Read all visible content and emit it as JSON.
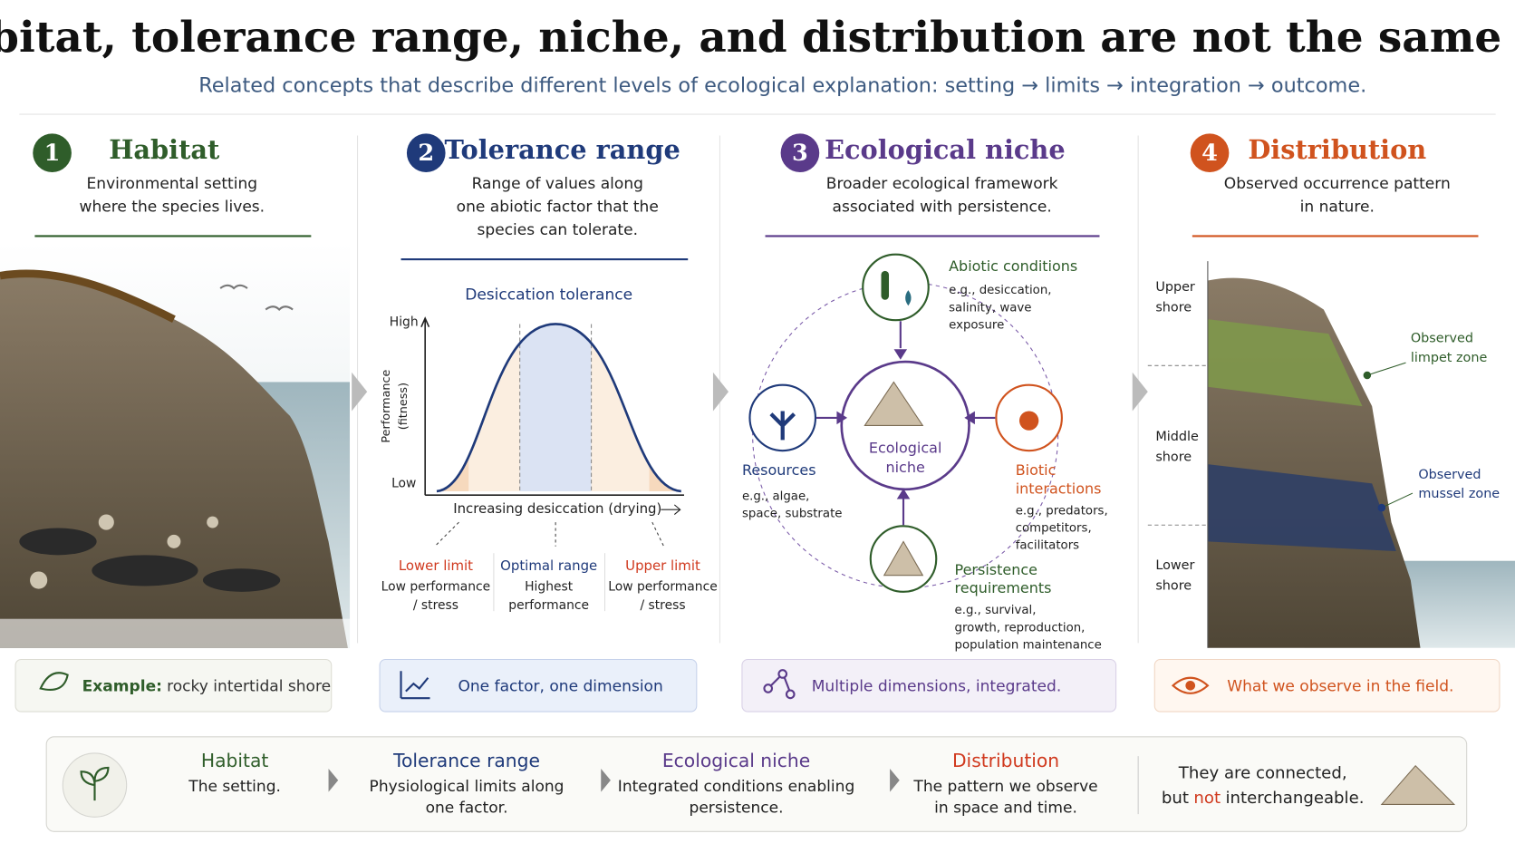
{
  "header": {
    "title": "Habitat, tolerance range, niche, and distribution are not the same thing",
    "subtitle": "Related concepts that describe different levels of ecological explanation: setting → limits → integration → outcome."
  },
  "panels": [
    {
      "number": "1",
      "title": "Habitat",
      "description": [
        "Environmental setting",
        "where the species lives."
      ],
      "footer": {
        "lead": "Example:",
        "text": "rocky intertidal shore"
      }
    },
    {
      "number": "2",
      "title": "Tolerance range",
      "description": [
        "Range of values along",
        "one abiotic factor that the",
        "species can tolerate."
      ],
      "footer": {
        "text": "One factor, one dimension"
      }
    },
    {
      "number": "3",
      "title": "Ecological niche",
      "description": [
        "Broader ecological framework",
        "associated with persistence."
      ],
      "footer": {
        "text": "Multiple dimensions, integrated."
      }
    },
    {
      "number": "4",
      "title": "Distribution",
      "description": [
        "Observed occurrence pattern",
        "in nature."
      ],
      "footer": {
        "text": "What we observe in the field."
      }
    }
  ],
  "tolerance_chart": {
    "title": "Desiccation tolerance",
    "y_axis_label": [
      "Performance",
      "(fitness)"
    ],
    "y_high": "High",
    "y_low": "Low",
    "x_axis_label": "Increasing desiccation (drying)",
    "zones": [
      {
        "label": "Lower limit",
        "description": [
          "Low performance",
          "/ stress"
        ]
      },
      {
        "label": "Optimal range",
        "description": [
          "Highest",
          "performance"
        ]
      },
      {
        "label": "Upper limit",
        "description": [
          "Low performance",
          "/ stress"
        ]
      }
    ]
  },
  "niche_diagram": {
    "center": [
      "Ecological",
      "niche"
    ],
    "nodes": [
      {
        "label": [
          "Abiotic conditions"
        ],
        "examples": [
          "e.g., desiccation,",
          "salinity, wave",
          "exposure"
        ]
      },
      {
        "label": [
          "Resources"
        ],
        "examples": [
          "e.g., algae,",
          "space, substrate"
        ]
      },
      {
        "label": [
          "Biotic",
          "interactions"
        ],
        "examples": [
          "e.g., predators,",
          "competitors,",
          "facilitators"
        ]
      },
      {
        "label": [
          "Persistence",
          "requirements"
        ],
        "examples": [
          "e.g., survival,",
          "growth, reproduction,",
          "population maintenance"
        ]
      }
    ]
  },
  "distribution_diagram": {
    "shore_levels": [
      [
        "Upper",
        "shore"
      ],
      [
        "Middle",
        "shore"
      ],
      [
        "Lower",
        "shore"
      ]
    ],
    "zones": [
      [
        "Observed",
        "limpet zone"
      ],
      [
        "Observed",
        "mussel zone"
      ]
    ]
  },
  "summary": {
    "items": [
      {
        "title": "Habitat",
        "description": [
          "The setting."
        ]
      },
      {
        "title": "Tolerance range",
        "description": [
          "Physiological limits along",
          "one factor."
        ]
      },
      {
        "title": "Ecological niche",
        "description": [
          "Integrated conditions enabling",
          "persistence."
        ]
      },
      {
        "title": "Distribution",
        "description": [
          "The pattern we observe",
          "in space and time."
        ]
      }
    ],
    "conclusion": {
      "line1": "They are connected,",
      "line2_start": "but",
      "emphasis": "not",
      "line2_end": "interchangeable."
    }
  }
}
